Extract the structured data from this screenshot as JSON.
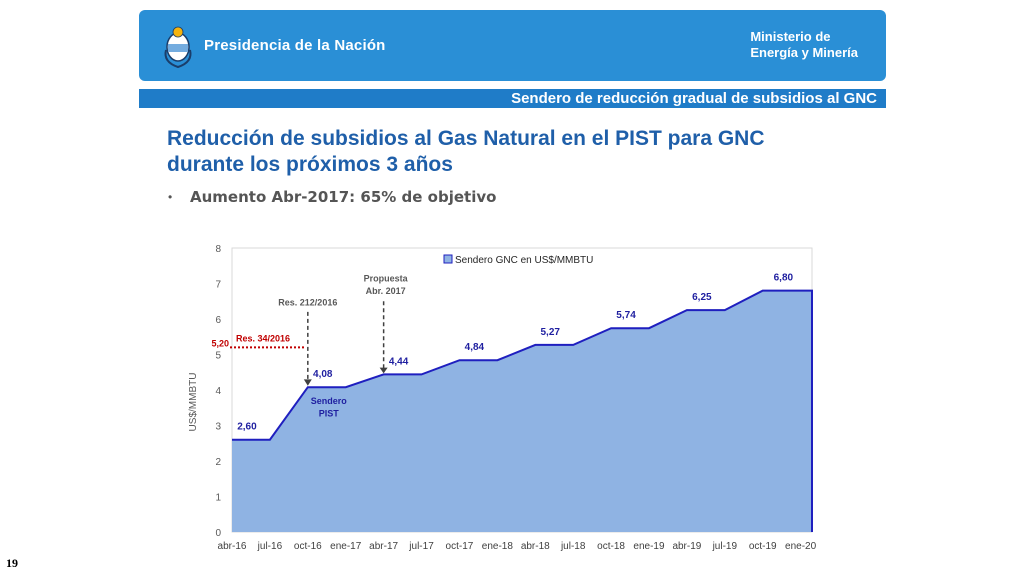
{
  "header": {
    "presidencia": "Presidencia de la Nación",
    "ministerio_line1": "Ministerio de",
    "ministerio_line2": "Energía y Minería"
  },
  "subtitle": "Sendero de reducción gradual de subsidios al GNC",
  "title_line1": "Reducción de subsidios al Gas Natural en el PIST para GNC",
  "title_line2": "durante los próximos 3 años",
  "bullet": "Aumento Abr-2017: 65% de objetivo",
  "page_number": "19",
  "colors": {
    "header_blue": "#2a8fd6",
    "title_blue": "#1f5fa9",
    "area_fill": "#8fb3e3",
    "area_line": "#1f1fbf",
    "value_label": "#1f1fa0",
    "reference_red": "#c00000"
  },
  "chart_data": {
    "type": "area",
    "series": [
      {
        "name": "Sendero GNC en US$/MMBTU",
        "steps": [
          {
            "from": "abr-16",
            "to": "jul-16",
            "value": 2.6,
            "label": "2,60"
          },
          {
            "from": "oct-16",
            "to": "ene-17",
            "value": 4.08,
            "label": "4,08"
          },
          {
            "from": "abr-17",
            "to": "jul-17",
            "value": 4.44,
            "label": "4,44"
          },
          {
            "from": "oct-17",
            "to": "ene-18",
            "value": 4.84,
            "label": "4,84"
          },
          {
            "from": "abr-18",
            "to": "jul-18",
            "value": 5.27,
            "label": "5,27"
          },
          {
            "from": "oct-18",
            "to": "ene-19",
            "value": 5.74,
            "label": "5,74"
          },
          {
            "from": "abr-19",
            "to": "jul-19",
            "value": 6.25,
            "label": "6,25"
          },
          {
            "from": "oct-19",
            "to": "ene-20",
            "value": 6.8,
            "label": "6,80"
          }
        ]
      }
    ],
    "categories": [
      "abr-16",
      "jul-16",
      "oct-16",
      "ene-17",
      "abr-17",
      "jul-17",
      "oct-17",
      "ene-18",
      "abr-18",
      "jul-18",
      "oct-18",
      "ene-19",
      "abr-19",
      "jul-19",
      "oct-19",
      "ene-20"
    ],
    "ylabel": "US$/MMBTU",
    "ylim": [
      0,
      8
    ],
    "yticks": [
      "0",
      "1",
      "2",
      "3",
      "4",
      "5",
      "6",
      "7",
      "8"
    ],
    "grid": false,
    "legend": {
      "placement": "top",
      "label": "Sendero GNC en US$/MMBTU"
    },
    "reference_line": {
      "value": 5.2,
      "label": "5,20",
      "name": "Res. 34/2016"
    },
    "annotations": [
      {
        "text": "Res. 212/2016",
        "at": "oct-16"
      },
      {
        "text_line1": "Propuesta",
        "text_line2": "Abr. 2017",
        "at": "abr-17"
      }
    ],
    "area_text_line1": "Sendero",
    "area_text_line2": "PIST"
  }
}
